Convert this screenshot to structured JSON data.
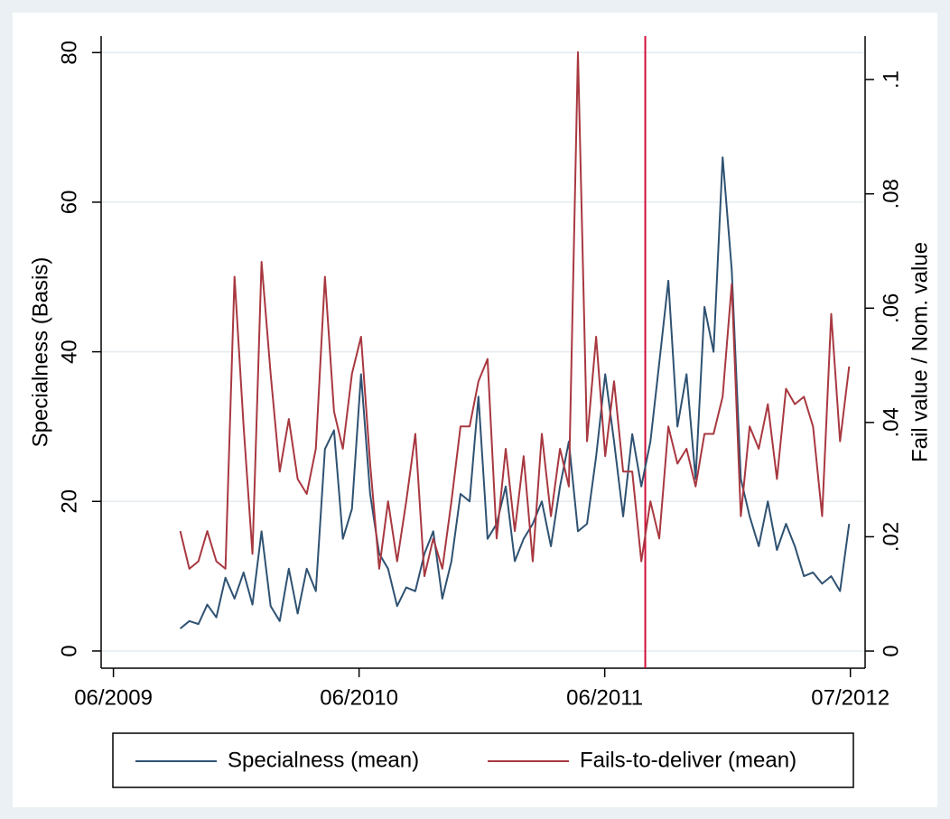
{
  "chart_data": {
    "type": "line",
    "x": [
      2009.722,
      2009.759,
      2009.796,
      2009.832,
      2009.869,
      2009.906,
      2009.943,
      2009.98,
      2010.016,
      2010.053,
      2010.09,
      2010.127,
      2010.164,
      2010.2,
      2010.237,
      2010.274,
      2010.311,
      2010.348,
      2010.384,
      2010.421,
      2010.458,
      2010.495,
      2010.532,
      2010.568,
      2010.605,
      2010.642,
      2010.679,
      2010.716,
      2010.752,
      2010.789,
      2010.826,
      2010.863,
      2010.9,
      2010.936,
      2010.973,
      2011.01,
      2011.047,
      2011.084,
      2011.12,
      2011.157,
      2011.194,
      2011.231,
      2011.268,
      2011.304,
      2011.341,
      2011.378,
      2011.415,
      2011.452,
      2011.488,
      2011.525,
      2011.562,
      2011.599,
      2011.636,
      2011.672,
      2011.709,
      2011.746,
      2011.783,
      2011.82,
      2011.856,
      2011.893,
      2011.93,
      2011.967,
      2012.004,
      2012.04,
      2012.077,
      2012.114,
      2012.151,
      2012.188,
      2012.224,
      2012.261,
      2012.298,
      2012.335,
      2012.372,
      2012.408,
      2012.445
    ],
    "xlim": [
      2009.4,
      2012.51
    ],
    "xticks": [
      {
        "value": 2009.45,
        "label": "06/2009"
      },
      {
        "value": 2010.45,
        "label": "06/2010"
      },
      {
        "value": 2011.45,
        "label": "06/2011"
      },
      {
        "value": 2012.45,
        "label": "07/2012"
      }
    ],
    "ylim": [
      -2.3,
      82.2
    ],
    "yticks": [
      0,
      20,
      40,
      60,
      80
    ],
    "ylabel": "Specialness (Basis)",
    "y2lim": [
      -0.003,
      0.1076
    ],
    "y2ticks": [
      0,
      {
        "value": 0.02,
        "label": ".02"
      },
      {
        "value": 0.04,
        "label": ".04"
      },
      {
        "value": 0.06,
        "label": ".06"
      },
      {
        "value": 0.08,
        "label": ".08"
      },
      {
        "value": 0.1,
        "label": ".1"
      }
    ],
    "y2label": "Fail value / Nom. value",
    "grid": true,
    "legend": "bottom",
    "vline": {
      "x": 2011.615,
      "color": "#d0103a"
    },
    "series": [
      {
        "name": "Specialness (mean)",
        "color": "#2f5272",
        "values": [
          3,
          4,
          3.6,
          6.2,
          4.5,
          9.8,
          7,
          10.5,
          6.2,
          16,
          6,
          4,
          11,
          5,
          11,
          8,
          27,
          29.5,
          15,
          19,
          37,
          21,
          13,
          11,
          6,
          8.5,
          8,
          13,
          16,
          7,
          12,
          21,
          20,
          34,
          15,
          17,
          22,
          12,
          15,
          17,
          20,
          14,
          22,
          28,
          16,
          17,
          26,
          37,
          28,
          18,
          29,
          22,
          28,
          38.5,
          49.5,
          30,
          37,
          23,
          46,
          40,
          66,
          51,
          23,
          18,
          14,
          20,
          13.5,
          17,
          14,
          10,
          10.5,
          9,
          10,
          8,
          17
        ]
      },
      {
        "name": "Fails-to-deliver (mean)",
        "color": "#a83840",
        "axis": "y2",
        "values": [
          0.021,
          0.0144,
          0.0157,
          0.021,
          0.0157,
          0.0144,
          0.0655,
          0.0393,
          0.017,
          0.0681,
          0.0485,
          0.0314,
          0.0406,
          0.0301,
          0.0275,
          0.0354,
          0.0655,
          0.0419,
          0.0354,
          0.0485,
          0.055,
          0.0328,
          0.0144,
          0.0262,
          0.0157,
          0.0262,
          0.038,
          0.0131,
          0.0197,
          0.0144,
          0.0262,
          0.0393,
          0.0393,
          0.0472,
          0.0511,
          0.0197,
          0.0354,
          0.021,
          0.0341,
          0.0157,
          0.038,
          0.0236,
          0.0354,
          0.0288,
          0.1048,
          0.0367,
          0.055,
          0.0341,
          0.0472,
          0.0314,
          0.0314,
          0.0157,
          0.0262,
          0.0197,
          0.0393,
          0.0328,
          0.0354,
          0.0288,
          0.038,
          0.038,
          0.0445,
          0.0642,
          0.0236,
          0.0393,
          0.0354,
          0.0432,
          0.0301,
          0.0459,
          0.0432,
          0.0445,
          0.0393,
          0.0236,
          0.059,
          0.0367,
          0.0498
        ]
      }
    ]
  }
}
